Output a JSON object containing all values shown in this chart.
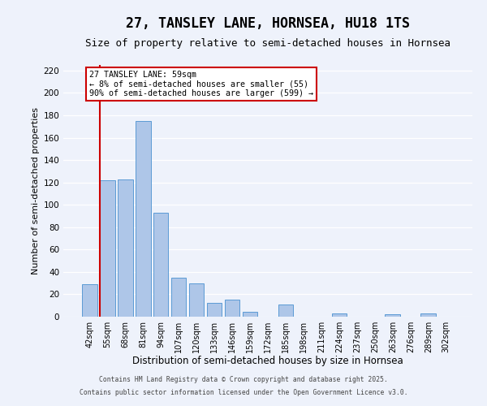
{
  "title": "27, TANSLEY LANE, HORNSEA, HU18 1TS",
  "subtitle": "Size of property relative to semi-detached houses in Hornsea",
  "xlabel": "Distribution of semi-detached houses by size in Hornsea",
  "ylabel": "Number of semi-detached properties",
  "categories": [
    "42sqm",
    "55sqm",
    "68sqm",
    "81sqm",
    "94sqm",
    "107sqm",
    "120sqm",
    "133sqm",
    "146sqm",
    "159sqm",
    "172sqm",
    "185sqm",
    "198sqm",
    "211sqm",
    "224sqm",
    "237sqm",
    "250sqm",
    "263sqm",
    "276sqm",
    "289sqm",
    "302sqm"
  ],
  "values": [
    29,
    122,
    123,
    175,
    93,
    35,
    30,
    12,
    15,
    4,
    0,
    11,
    0,
    0,
    3,
    0,
    0,
    2,
    0,
    3,
    0
  ],
  "bar_color": "#aec6e8",
  "bar_edge_color": "#5b9bd5",
  "vline_x_index": 1,
  "vline_color": "#cc0000",
  "annotation_title": "27 TANSLEY LANE: 59sqm",
  "annotation_line2": "← 8% of semi-detached houses are smaller (55)",
  "annotation_line3": "90% of semi-detached houses are larger (599) →",
  "annotation_box_color": "#ffffff",
  "annotation_box_edge_color": "#cc0000",
  "ylim": [
    0,
    225
  ],
  "yticks": [
    0,
    20,
    40,
    60,
    80,
    100,
    120,
    140,
    160,
    180,
    200,
    220
  ],
  "footer1": "Contains HM Land Registry data © Crown copyright and database right 2025.",
  "footer2": "Contains public sector information licensed under the Open Government Licence v3.0.",
  "bg_color": "#eef2fb",
  "grid_color": "#ffffff",
  "title_fontsize": 12,
  "subtitle_fontsize": 9,
  "tick_label_fontsize": 7
}
